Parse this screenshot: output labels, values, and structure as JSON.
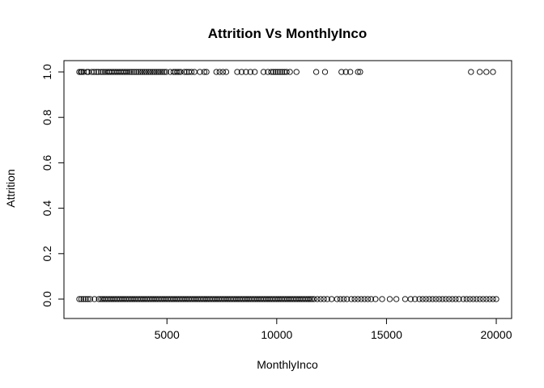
{
  "chart_data": {
    "type": "scatter",
    "title": "Attrition Vs MonthlyInco",
    "xlabel": "MonthlyInco",
    "ylabel": "Attrition",
    "xlim": [
      1009,
      19999
    ],
    "ylim": [
      0,
      1
    ],
    "xticks": [
      5000,
      10000,
      15000,
      20000
    ],
    "yticks": [
      0.0,
      0.2,
      0.4,
      0.6,
      0.8,
      1.0
    ],
    "ytick_labels": [
      "0.0",
      "0.2",
      "0.4",
      "0.6",
      "0.8",
      "1.0"
    ],
    "xtick_labels": [
      "5000",
      "10000",
      "15000",
      "20000"
    ],
    "grid": false,
    "marker": "open-circle",
    "series": [
      {
        "values": [
          {
            "x": 1009,
            "y": 1
          },
          {
            "x": 1081,
            "y": 1
          },
          {
            "x": 1118,
            "y": 1
          },
          {
            "x": 1200,
            "y": 1
          },
          {
            "x": 1359,
            "y": 1
          },
          {
            "x": 1420,
            "y": 1
          },
          {
            "x": 1569,
            "y": 1
          },
          {
            "x": 1675,
            "y": 1
          },
          {
            "x": 1790,
            "y": 1
          },
          {
            "x": 1878,
            "y": 1
          },
          {
            "x": 2000,
            "y": 1
          },
          {
            "x": 2090,
            "y": 1
          },
          {
            "x": 2180,
            "y": 1
          },
          {
            "x": 2270,
            "y": 1
          },
          {
            "x": 2350,
            "y": 1
          },
          {
            "x": 2420,
            "y": 1
          },
          {
            "x": 2500,
            "y": 1
          },
          {
            "x": 2580,
            "y": 1
          },
          {
            "x": 2660,
            "y": 1
          },
          {
            "x": 2740,
            "y": 1
          },
          {
            "x": 2820,
            "y": 1
          },
          {
            "x": 2900,
            "y": 1
          },
          {
            "x": 2980,
            "y": 1
          },
          {
            "x": 3060,
            "y": 1
          },
          {
            "x": 3140,
            "y": 1
          },
          {
            "x": 3220,
            "y": 1
          },
          {
            "x": 3310,
            "y": 1
          },
          {
            "x": 3400,
            "y": 1
          },
          {
            "x": 3500,
            "y": 1
          },
          {
            "x": 3600,
            "y": 1
          },
          {
            "x": 3700,
            "y": 1
          },
          {
            "x": 3790,
            "y": 1
          },
          {
            "x": 3880,
            "y": 1
          },
          {
            "x": 3970,
            "y": 1
          },
          {
            "x": 4060,
            "y": 1
          },
          {
            "x": 4150,
            "y": 1
          },
          {
            "x": 4240,
            "y": 1
          },
          {
            "x": 4330,
            "y": 1
          },
          {
            "x": 4420,
            "y": 1
          },
          {
            "x": 4510,
            "y": 1
          },
          {
            "x": 4600,
            "y": 1
          },
          {
            "x": 4690,
            "y": 1
          },
          {
            "x": 4780,
            "y": 1
          },
          {
            "x": 4870,
            "y": 1
          },
          {
            "x": 4960,
            "y": 1
          },
          {
            "x": 5150,
            "y": 1
          },
          {
            "x": 5300,
            "y": 1
          },
          {
            "x": 5380,
            "y": 1
          },
          {
            "x": 5460,
            "y": 1
          },
          {
            "x": 5540,
            "y": 1
          },
          {
            "x": 5620,
            "y": 1
          },
          {
            "x": 5800,
            "y": 1
          },
          {
            "x": 5900,
            "y": 1
          },
          {
            "x": 6000,
            "y": 1
          },
          {
            "x": 6120,
            "y": 1
          },
          {
            "x": 6250,
            "y": 1
          },
          {
            "x": 6500,
            "y": 1
          },
          {
            "x": 6700,
            "y": 1
          },
          {
            "x": 6800,
            "y": 1
          },
          {
            "x": 7250,
            "y": 1
          },
          {
            "x": 7400,
            "y": 1
          },
          {
            "x": 7550,
            "y": 1
          },
          {
            "x": 7700,
            "y": 1
          },
          {
            "x": 8200,
            "y": 1
          },
          {
            "x": 8400,
            "y": 1
          },
          {
            "x": 8600,
            "y": 1
          },
          {
            "x": 8800,
            "y": 1
          },
          {
            "x": 9000,
            "y": 1
          },
          {
            "x": 9400,
            "y": 1
          },
          {
            "x": 9600,
            "y": 1
          },
          {
            "x": 9750,
            "y": 1
          },
          {
            "x": 9850,
            "y": 1
          },
          {
            "x": 9950,
            "y": 1
          },
          {
            "x": 10050,
            "y": 1
          },
          {
            "x": 10150,
            "y": 1
          },
          {
            "x": 10250,
            "y": 1
          },
          {
            "x": 10350,
            "y": 1
          },
          {
            "x": 10450,
            "y": 1
          },
          {
            "x": 10600,
            "y": 1
          },
          {
            "x": 10900,
            "y": 1
          },
          {
            "x": 11800,
            "y": 1
          },
          {
            "x": 12200,
            "y": 1
          },
          {
            "x": 12950,
            "y": 1
          },
          {
            "x": 13150,
            "y": 1
          },
          {
            "x": 13350,
            "y": 1
          },
          {
            "x": 13700,
            "y": 1
          },
          {
            "x": 13800,
            "y": 1
          },
          {
            "x": 18850,
            "y": 1
          },
          {
            "x": 19250,
            "y": 1
          },
          {
            "x": 19550,
            "y": 1
          },
          {
            "x": 19850,
            "y": 1
          },
          {
            "x": 1009,
            "y": 0
          },
          {
            "x": 1100,
            "y": 0
          },
          {
            "x": 1200,
            "y": 0
          },
          {
            "x": 1300,
            "y": 0
          },
          {
            "x": 1400,
            "y": 0
          },
          {
            "x": 1500,
            "y": 0
          },
          {
            "x": 1700,
            "y": 0
          },
          {
            "x": 1900,
            "y": 0
          },
          {
            "x": 2000,
            "y": 0
          },
          {
            "x": 2080,
            "y": 0
          },
          {
            "x": 2160,
            "y": 0
          },
          {
            "x": 2240,
            "y": 0
          },
          {
            "x": 2320,
            "y": 0
          },
          {
            "x": 2400,
            "y": 0
          },
          {
            "x": 2480,
            "y": 0
          },
          {
            "x": 2560,
            "y": 0
          },
          {
            "x": 2640,
            "y": 0
          },
          {
            "x": 2720,
            "y": 0
          },
          {
            "x": 2800,
            "y": 0
          },
          {
            "x": 2880,
            "y": 0
          },
          {
            "x": 2960,
            "y": 0
          },
          {
            "x": 3040,
            "y": 0
          },
          {
            "x": 3120,
            "y": 0
          },
          {
            "x": 3200,
            "y": 0
          },
          {
            "x": 3280,
            "y": 0
          },
          {
            "x": 3360,
            "y": 0
          },
          {
            "x": 3440,
            "y": 0
          },
          {
            "x": 3520,
            "y": 0
          },
          {
            "x": 3600,
            "y": 0
          },
          {
            "x": 3680,
            "y": 0
          },
          {
            "x": 3760,
            "y": 0
          },
          {
            "x": 3840,
            "y": 0
          },
          {
            "x": 3920,
            "y": 0
          },
          {
            "x": 4000,
            "y": 0
          },
          {
            "x": 4080,
            "y": 0
          },
          {
            "x": 4160,
            "y": 0
          },
          {
            "x": 4240,
            "y": 0
          },
          {
            "x": 4320,
            "y": 0
          },
          {
            "x": 4400,
            "y": 0
          },
          {
            "x": 4480,
            "y": 0
          },
          {
            "x": 4560,
            "y": 0
          },
          {
            "x": 4640,
            "y": 0
          },
          {
            "x": 4720,
            "y": 0
          },
          {
            "x": 4800,
            "y": 0
          },
          {
            "x": 4880,
            "y": 0
          },
          {
            "x": 4960,
            "y": 0
          },
          {
            "x": 5040,
            "y": 0
          },
          {
            "x": 5120,
            "y": 0
          },
          {
            "x": 5200,
            "y": 0
          },
          {
            "x": 5280,
            "y": 0
          },
          {
            "x": 5360,
            "y": 0
          },
          {
            "x": 5440,
            "y": 0
          },
          {
            "x": 5520,
            "y": 0
          },
          {
            "x": 5600,
            "y": 0
          },
          {
            "x": 5680,
            "y": 0
          },
          {
            "x": 5760,
            "y": 0
          },
          {
            "x": 5840,
            "y": 0
          },
          {
            "x": 5920,
            "y": 0
          },
          {
            "x": 6000,
            "y": 0
          },
          {
            "x": 6080,
            "y": 0
          },
          {
            "x": 6160,
            "y": 0
          },
          {
            "x": 6240,
            "y": 0
          },
          {
            "x": 6320,
            "y": 0
          },
          {
            "x": 6400,
            "y": 0
          },
          {
            "x": 6480,
            "y": 0
          },
          {
            "x": 6560,
            "y": 0
          },
          {
            "x": 6640,
            "y": 0
          },
          {
            "x": 6720,
            "y": 0
          },
          {
            "x": 6800,
            "y": 0
          },
          {
            "x": 6880,
            "y": 0
          },
          {
            "x": 6960,
            "y": 0
          },
          {
            "x": 7040,
            "y": 0
          },
          {
            "x": 7120,
            "y": 0
          },
          {
            "x": 7200,
            "y": 0
          },
          {
            "x": 7280,
            "y": 0
          },
          {
            "x": 7360,
            "y": 0
          },
          {
            "x": 7440,
            "y": 0
          },
          {
            "x": 7520,
            "y": 0
          },
          {
            "x": 7600,
            "y": 0
          },
          {
            "x": 7680,
            "y": 0
          },
          {
            "x": 7760,
            "y": 0
          },
          {
            "x": 7840,
            "y": 0
          },
          {
            "x": 7920,
            "y": 0
          },
          {
            "x": 8000,
            "y": 0
          },
          {
            "x": 8080,
            "y": 0
          },
          {
            "x": 8160,
            "y": 0
          },
          {
            "x": 8240,
            "y": 0
          },
          {
            "x": 8320,
            "y": 0
          },
          {
            "x": 8400,
            "y": 0
          },
          {
            "x": 8480,
            "y": 0
          },
          {
            "x": 8560,
            "y": 0
          },
          {
            "x": 8640,
            "y": 0
          },
          {
            "x": 8720,
            "y": 0
          },
          {
            "x": 8800,
            "y": 0
          },
          {
            "x": 8880,
            "y": 0
          },
          {
            "x": 8960,
            "y": 0
          },
          {
            "x": 9040,
            "y": 0
          },
          {
            "x": 9120,
            "y": 0
          },
          {
            "x": 9200,
            "y": 0
          },
          {
            "x": 9280,
            "y": 0
          },
          {
            "x": 9360,
            "y": 0
          },
          {
            "x": 9440,
            "y": 0
          },
          {
            "x": 9520,
            "y": 0
          },
          {
            "x": 9600,
            "y": 0
          },
          {
            "x": 9680,
            "y": 0
          },
          {
            "x": 9760,
            "y": 0
          },
          {
            "x": 9840,
            "y": 0
          },
          {
            "x": 9920,
            "y": 0
          },
          {
            "x": 10000,
            "y": 0
          },
          {
            "x": 10080,
            "y": 0
          },
          {
            "x": 10160,
            "y": 0
          },
          {
            "x": 10240,
            "y": 0
          },
          {
            "x": 10320,
            "y": 0
          },
          {
            "x": 10400,
            "y": 0
          },
          {
            "x": 10480,
            "y": 0
          },
          {
            "x": 10560,
            "y": 0
          },
          {
            "x": 10640,
            "y": 0
          },
          {
            "x": 10720,
            "y": 0
          },
          {
            "x": 10800,
            "y": 0
          },
          {
            "x": 10880,
            "y": 0
          },
          {
            "x": 10960,
            "y": 0
          },
          {
            "x": 11040,
            "y": 0
          },
          {
            "x": 11120,
            "y": 0
          },
          {
            "x": 11200,
            "y": 0
          },
          {
            "x": 11280,
            "y": 0
          },
          {
            "x": 11360,
            "y": 0
          },
          {
            "x": 11440,
            "y": 0
          },
          {
            "x": 11520,
            "y": 0
          },
          {
            "x": 11600,
            "y": 0
          },
          {
            "x": 11700,
            "y": 0
          },
          {
            "x": 11850,
            "y": 0
          },
          {
            "x": 12000,
            "y": 0
          },
          {
            "x": 12150,
            "y": 0
          },
          {
            "x": 12300,
            "y": 0
          },
          {
            "x": 12500,
            "y": 0
          },
          {
            "x": 12750,
            "y": 0
          },
          {
            "x": 12900,
            "y": 0
          },
          {
            "x": 13050,
            "y": 0
          },
          {
            "x": 13200,
            "y": 0
          },
          {
            "x": 13400,
            "y": 0
          },
          {
            "x": 13550,
            "y": 0
          },
          {
            "x": 13700,
            "y": 0
          },
          {
            "x": 13850,
            "y": 0
          },
          {
            "x": 14000,
            "y": 0
          },
          {
            "x": 14150,
            "y": 0
          },
          {
            "x": 14300,
            "y": 0
          },
          {
            "x": 14500,
            "y": 0
          },
          {
            "x": 14800,
            "y": 0
          },
          {
            "x": 15150,
            "y": 0
          },
          {
            "x": 15450,
            "y": 0
          },
          {
            "x": 15850,
            "y": 0
          },
          {
            "x": 16100,
            "y": 0
          },
          {
            "x": 16300,
            "y": 0
          },
          {
            "x": 16500,
            "y": 0
          },
          {
            "x": 16650,
            "y": 0
          },
          {
            "x": 16800,
            "y": 0
          },
          {
            "x": 16950,
            "y": 0
          },
          {
            "x": 17100,
            "y": 0
          },
          {
            "x": 17250,
            "y": 0
          },
          {
            "x": 17400,
            "y": 0
          },
          {
            "x": 17550,
            "y": 0
          },
          {
            "x": 17700,
            "y": 0
          },
          {
            "x": 17850,
            "y": 0
          },
          {
            "x": 18000,
            "y": 0
          },
          {
            "x": 18150,
            "y": 0
          },
          {
            "x": 18300,
            "y": 0
          },
          {
            "x": 18500,
            "y": 0
          },
          {
            "x": 18650,
            "y": 0
          },
          {
            "x": 18800,
            "y": 0
          },
          {
            "x": 18950,
            "y": 0
          },
          {
            "x": 19100,
            "y": 0
          },
          {
            "x": 19250,
            "y": 0
          },
          {
            "x": 19400,
            "y": 0
          },
          {
            "x": 19550,
            "y": 0
          },
          {
            "x": 19700,
            "y": 0
          },
          {
            "x": 19850,
            "y": 0
          },
          {
            "x": 19999,
            "y": 0
          }
        ]
      }
    ]
  }
}
